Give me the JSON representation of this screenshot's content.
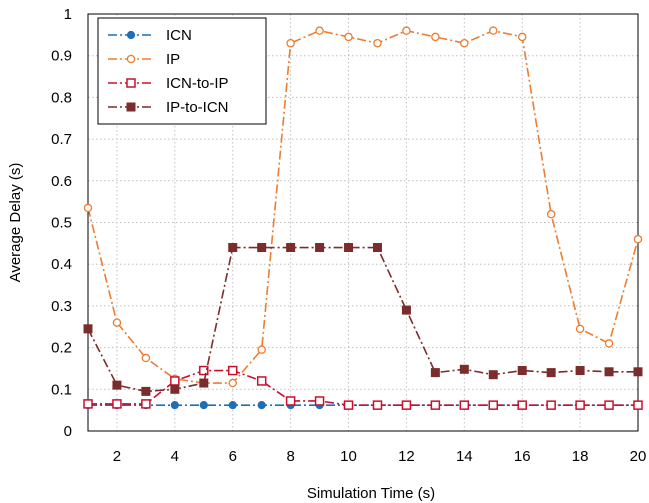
{
  "chart_data": {
    "type": "line",
    "title": "",
    "xlabel": "Simulation Time (s)",
    "ylabel": "Average Delay (s)",
    "xlim": [
      1,
      20
    ],
    "ylim": [
      0,
      1
    ],
    "xticks": [
      2,
      4,
      6,
      8,
      10,
      12,
      14,
      16,
      18,
      20
    ],
    "yticks": [
      0,
      0.1,
      0.2,
      0.3,
      0.4,
      0.5,
      0.6,
      0.7,
      0.8,
      0.9,
      1
    ],
    "xtick_labels": [
      "2",
      "4",
      "6",
      "8",
      "10",
      "12",
      "14",
      "16",
      "18",
      "20"
    ],
    "ytick_labels": [
      "0",
      "0.1",
      "0.2",
      "0.3",
      "0.4",
      "0.5",
      "0.6",
      "0.7",
      "0.8",
      "0.9",
      "1"
    ],
    "grid": true,
    "legend_position": "top-left",
    "x": [
      1,
      2,
      3,
      4,
      5,
      6,
      7,
      8,
      9,
      10,
      11,
      12,
      13,
      14,
      15,
      16,
      17,
      18,
      19,
      20
    ],
    "series": [
      {
        "name": "ICN",
        "color": "#1f6fb4",
        "line_style": "dash-dot",
        "marker": "filled-circle",
        "values": [
          0.062,
          0.062,
          0.062,
          0.062,
          0.062,
          0.062,
          0.062,
          0.062,
          0.062,
          0.062,
          0.062,
          0.062,
          0.062,
          0.062,
          0.062,
          0.062,
          0.062,
          0.062,
          0.062,
          0.062
        ]
      },
      {
        "name": "IP",
        "color": "#ed7d31",
        "line_style": "dash-dot",
        "marker": "open-circle",
        "values": [
          0.535,
          0.26,
          0.175,
          0.125,
          0.115,
          0.115,
          0.195,
          0.93,
          0.96,
          0.945,
          0.93,
          0.96,
          0.945,
          0.93,
          0.96,
          0.945,
          0.52,
          0.245,
          0.21,
          0.46
        ]
      },
      {
        "name": "ICN-to-IP",
        "color": "#c8102e",
        "line_style": "dash-dot",
        "marker": "open-square",
        "values": [
          0.065,
          0.065,
          0.065,
          0.12,
          0.145,
          0.145,
          0.12,
          0.072,
          0.072,
          0.062,
          0.062,
          0.062,
          0.062,
          0.062,
          0.062,
          0.062,
          0.062,
          0.062,
          0.062,
          0.062
        ]
      },
      {
        "name": "IP-to-ICN",
        "color": "#7b2c2c",
        "line_style": "dash-dot",
        "marker": "filled-square",
        "values": [
          0.245,
          0.11,
          0.095,
          0.1,
          0.115,
          0.44,
          0.44,
          0.44,
          0.44,
          0.44,
          0.44,
          0.29,
          0.14,
          0.148,
          0.135,
          0.145,
          0.14,
          0.145,
          0.142,
          0.142
        ]
      }
    ]
  }
}
